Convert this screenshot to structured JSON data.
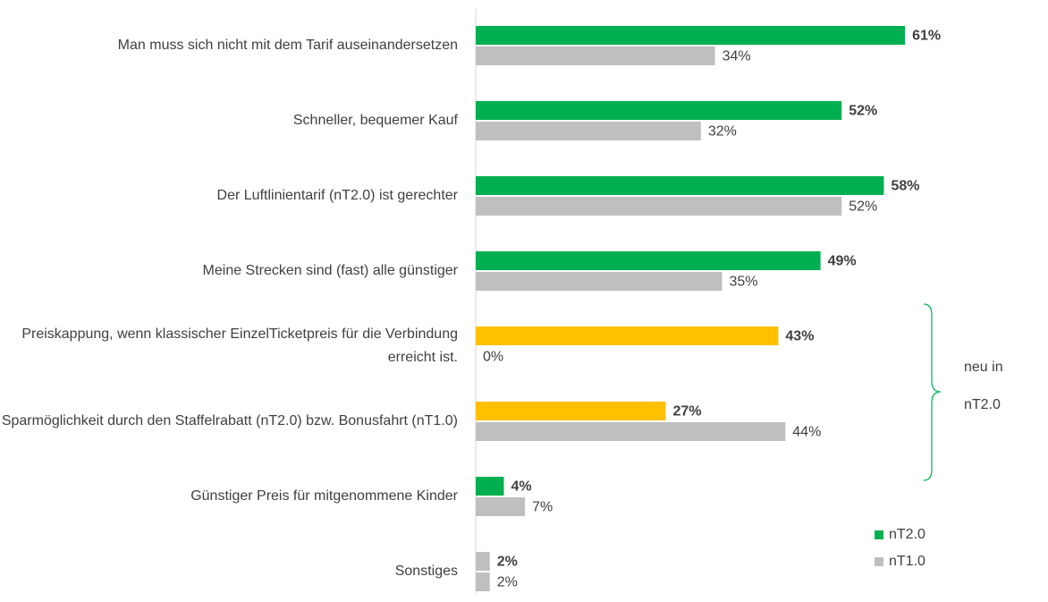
{
  "chart_data": {
    "type": "bar",
    "orientation": "horizontal",
    "categories": [
      "Man muss sich nicht mit dem Tarif auseinandersetzen",
      "Schneller, bequemer Kauf",
      "Der Luftlinientarif (nT2.0) ist gerechter",
      "Meine Strecken sind (fast) alle günstiger",
      "Preiskappung, wenn klassischer EinzelTicketpreis für die Verbindung erreicht ist.",
      "Sparmöglichkeit durch den Staffelrabatt (nT2.0) bzw. Bonusfahrt (nT1.0)",
      "Günstiger Preis für mitgenommene Kinder",
      "Sonstiges"
    ],
    "series": [
      {
        "name": "nT2.0",
        "color": "#00b050",
        "colors": [
          "#00b050",
          "#00b050",
          "#00b050",
          "#00b050",
          "#ffc000",
          "#ffc000",
          "#00b050",
          "#bfbfbf"
        ],
        "values": [
          61,
          52,
          58,
          49,
          43,
          27,
          4,
          2
        ],
        "value_labels": [
          "61%",
          "52%",
          "58%",
          "49%",
          "43%",
          "27%",
          "4%",
          "2%"
        ]
      },
      {
        "name": "nT1.0",
        "color": "#bfbfbf",
        "values": [
          34,
          32,
          52,
          35,
          0,
          44,
          7,
          2
        ],
        "value_labels": [
          "34%",
          "32%",
          "52%",
          "35%",
          "0%",
          "44%",
          "7%",
          "2%"
        ]
      }
    ],
    "legend": "bottom-right",
    "annotation": [
      "neu in",
      "nT2.0"
    ]
  }
}
